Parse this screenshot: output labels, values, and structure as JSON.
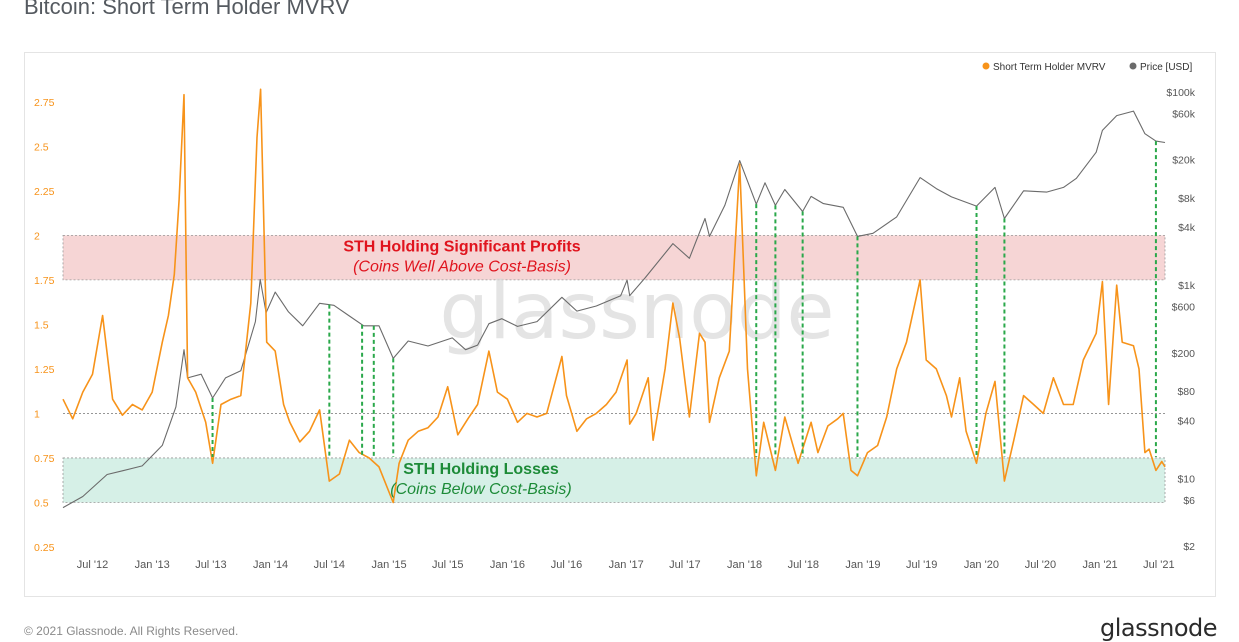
{
  "page": {
    "title": "Bitcoin: Short Term Holder MVRV",
    "copyright": "© 2021 Glassnode. All Rights Reserved.",
    "logo_text": "glassnode",
    "watermark": "glassnode"
  },
  "colors": {
    "mvrv": "#f7931a",
    "price": "#6b6b6b",
    "profit_zone": "#f3c7c7",
    "loss_zone": "#c9ece0",
    "profit_text": "#e0141e",
    "loss_text": "#1d8b38",
    "marker": "#2aa84a"
  },
  "chart_data": {
    "type": "line",
    "title": "Bitcoin: Short Term Holder MVRV",
    "legend_position": "top-right",
    "legend": [
      "Short Term Holder MVRV",
      "Price [USD]"
    ],
    "x_range": [
      "2012-04-01",
      "2021-07-20"
    ],
    "x_ticks": [
      "Jul '12",
      "Jan '13",
      "Jul '13",
      "Jan '14",
      "Jul '14",
      "Jan '15",
      "Jul '15",
      "Jan '16",
      "Jul '16",
      "Jan '17",
      "Jul '17",
      "Jan '18",
      "Jul '18",
      "Jan '19",
      "Jul '19",
      "Jan '20",
      "Jul '20",
      "Jan '21",
      "Jul '21"
    ],
    "x_tick_dates": [
      "2012-07-01",
      "2013-01-01",
      "2013-07-01",
      "2014-01-01",
      "2014-07-01",
      "2015-01-01",
      "2015-07-01",
      "2016-01-01",
      "2016-07-01",
      "2017-01-01",
      "2017-07-01",
      "2018-01-01",
      "2018-07-01",
      "2019-01-01",
      "2019-07-01",
      "2020-01-01",
      "2020-07-01",
      "2021-01-01",
      "2021-07-01"
    ],
    "y_left": {
      "label": "",
      "range": [
        0.25,
        2.85
      ],
      "ticks": [
        "0.25",
        "0.5",
        "0.75",
        "1",
        "1.25",
        "1.5",
        "1.75",
        "2",
        "2.25",
        "2.5",
        "2.75"
      ],
      "tick_values": [
        0.25,
        0.5,
        0.75,
        1,
        1.25,
        1.5,
        1.75,
        2,
        2.25,
        2.5,
        2.75
      ]
    },
    "y_right": {
      "label": "",
      "scale": "log",
      "range": [
        2,
        100000
      ],
      "ticks": [
        "$2",
        "$6",
        "$10",
        "$40",
        "$80",
        "$200",
        "$600",
        "$1k",
        "$4k",
        "$8k",
        "$20k",
        "$60k",
        "$100k"
      ],
      "tick_values": [
        2,
        6,
        10,
        40,
        80,
        200,
        600,
        1000,
        4000,
        8000,
        20000,
        60000,
        100000
      ]
    },
    "zones": [
      {
        "name": "profit",
        "from": 1.75,
        "to": 2.0,
        "label": "STH Holding Significant Profits",
        "sublabel": "(Coins Well Above Cost-Basis)"
      },
      {
        "name": "loss",
        "from": 0.5,
        "to": 0.75,
        "label": "STH Holding Losses",
        "sublabel": "(Coins Below Cost-Basis)"
      }
    ],
    "reference_line": 1.0,
    "series": [
      {
        "name": "Short Term Holder MVRV",
        "axis": "left",
        "points": [
          [
            "2012-04-01",
            1.08
          ],
          [
            "2012-05-01",
            0.97
          ],
          [
            "2012-06-01",
            1.12
          ],
          [
            "2012-07-01",
            1.22
          ],
          [
            "2012-08-01",
            1.55
          ],
          [
            "2012-09-01",
            1.08
          ],
          [
            "2012-10-01",
            0.99
          ],
          [
            "2012-11-01",
            1.05
          ],
          [
            "2012-12-01",
            1.02
          ],
          [
            "2013-01-01",
            1.12
          ],
          [
            "2013-02-01",
            1.4
          ],
          [
            "2013-02-20",
            1.55
          ],
          [
            "2013-03-10",
            1.78
          ],
          [
            "2013-03-25",
            2.2
          ],
          [
            "2013-04-09",
            2.79
          ],
          [
            "2013-04-20",
            1.2
          ],
          [
            "2013-05-15",
            1.12
          ],
          [
            "2013-06-15",
            0.95
          ],
          [
            "2013-07-06",
            0.72
          ],
          [
            "2013-08-01",
            1.05
          ],
          [
            "2013-09-01",
            1.08
          ],
          [
            "2013-10-01",
            1.1
          ],
          [
            "2013-11-01",
            1.62
          ],
          [
            "2013-11-20",
            2.55
          ],
          [
            "2013-12-01",
            2.82
          ],
          [
            "2013-12-20",
            1.4
          ],
          [
            "2014-01-15",
            1.35
          ],
          [
            "2014-02-10",
            1.05
          ],
          [
            "2014-03-01",
            0.95
          ],
          [
            "2014-04-01",
            0.84
          ],
          [
            "2014-05-01",
            0.9
          ],
          [
            "2014-06-01",
            1.02
          ],
          [
            "2014-07-01",
            0.62
          ],
          [
            "2014-08-01",
            0.66
          ],
          [
            "2014-09-01",
            0.85
          ],
          [
            "2014-10-01",
            0.78
          ],
          [
            "2014-11-01",
            0.75
          ],
          [
            "2014-12-01",
            0.7
          ],
          [
            "2015-01-14",
            0.5
          ],
          [
            "2015-02-01",
            0.72
          ],
          [
            "2015-03-01",
            0.85
          ],
          [
            "2015-04-01",
            0.9
          ],
          [
            "2015-05-01",
            0.92
          ],
          [
            "2015-06-01",
            0.98
          ],
          [
            "2015-07-01",
            1.15
          ],
          [
            "2015-08-01",
            0.88
          ],
          [
            "2015-09-01",
            0.97
          ],
          [
            "2015-10-01",
            1.05
          ],
          [
            "2015-11-05",
            1.35
          ],
          [
            "2015-12-01",
            1.12
          ],
          [
            "2016-01-01",
            1.08
          ],
          [
            "2016-02-01",
            0.95
          ],
          [
            "2016-03-01",
            1.0
          ],
          [
            "2016-04-01",
            0.98
          ],
          [
            "2016-05-01",
            1.0
          ],
          [
            "2016-06-17",
            1.32
          ],
          [
            "2016-07-01",
            1.1
          ],
          [
            "2016-08-02",
            0.9
          ],
          [
            "2016-09-01",
            0.97
          ],
          [
            "2016-10-01",
            1.0
          ],
          [
            "2016-11-01",
            1.05
          ],
          [
            "2016-12-01",
            1.12
          ],
          [
            "2017-01-04",
            1.3
          ],
          [
            "2017-01-12",
            0.94
          ],
          [
            "2017-02-01",
            1.0
          ],
          [
            "2017-03-10",
            1.2
          ],
          [
            "2017-03-25",
            0.85
          ],
          [
            "2017-05-01",
            1.25
          ],
          [
            "2017-05-25",
            1.62
          ],
          [
            "2017-06-15",
            1.42
          ],
          [
            "2017-07-15",
            0.98
          ],
          [
            "2017-08-15",
            1.45
          ],
          [
            "2017-09-01",
            1.4
          ],
          [
            "2017-09-15",
            0.95
          ],
          [
            "2017-10-15",
            1.2
          ],
          [
            "2017-11-15",
            1.35
          ],
          [
            "2017-12-17",
            2.4
          ],
          [
            "2018-01-10",
            1.25
          ],
          [
            "2018-02-06",
            0.65
          ],
          [
            "2018-03-01",
            0.95
          ],
          [
            "2018-04-06",
            0.68
          ],
          [
            "2018-05-05",
            0.98
          ],
          [
            "2018-06-15",
            0.72
          ],
          [
            "2018-07-25",
            0.95
          ],
          [
            "2018-08-15",
            0.78
          ],
          [
            "2018-09-15",
            0.93
          ],
          [
            "2018-10-15",
            0.97
          ],
          [
            "2018-11-01",
            1.0
          ],
          [
            "2018-11-25",
            0.68
          ],
          [
            "2018-12-15",
            0.65
          ],
          [
            "2019-01-15",
            0.78
          ],
          [
            "2019-02-15",
            0.82
          ],
          [
            "2019-03-15",
            0.98
          ],
          [
            "2019-04-15",
            1.25
          ],
          [
            "2019-05-15",
            1.4
          ],
          [
            "2019-06-26",
            1.75
          ],
          [
            "2019-07-15",
            1.3
          ],
          [
            "2019-08-15",
            1.25
          ],
          [
            "2019-09-15",
            1.1
          ],
          [
            "2019-10-01",
            0.98
          ],
          [
            "2019-10-26",
            1.2
          ],
          [
            "2019-11-15",
            0.9
          ],
          [
            "2019-12-17",
            0.72
          ],
          [
            "2020-01-15",
            1.0
          ],
          [
            "2020-02-12",
            1.18
          ],
          [
            "2020-03-12",
            0.62
          ],
          [
            "2020-04-10",
            0.85
          ],
          [
            "2020-05-10",
            1.1
          ],
          [
            "2020-06-10",
            1.05
          ],
          [
            "2020-07-10",
            1.0
          ],
          [
            "2020-08-10",
            1.2
          ],
          [
            "2020-09-10",
            1.05
          ],
          [
            "2020-10-10",
            1.05
          ],
          [
            "2020-11-10",
            1.3
          ],
          [
            "2020-12-20",
            1.45
          ],
          [
            "2021-01-08",
            1.74
          ],
          [
            "2021-01-27",
            1.05
          ],
          [
            "2021-02-21",
            1.72
          ],
          [
            "2021-03-10",
            1.4
          ],
          [
            "2021-04-14",
            1.38
          ],
          [
            "2021-05-01",
            1.25
          ],
          [
            "2021-05-19",
            0.78
          ],
          [
            "2021-06-01",
            0.8
          ],
          [
            "2021-06-22",
            0.68
          ],
          [
            "2021-07-10",
            0.73
          ],
          [
            "2021-07-20",
            0.7
          ]
        ]
      },
      {
        "name": "Price [USD]",
        "axis": "right",
        "points": [
          [
            "2012-04-01",
            5
          ],
          [
            "2012-06-01",
            6.5
          ],
          [
            "2012-08-15",
            11
          ],
          [
            "2012-10-01",
            12
          ],
          [
            "2012-12-01",
            13.5
          ],
          [
            "2013-02-01",
            22
          ],
          [
            "2013-03-15",
            55
          ],
          [
            "2013-04-09",
            215
          ],
          [
            "2013-04-20",
            110
          ],
          [
            "2013-06-01",
            120
          ],
          [
            "2013-07-06",
            68
          ],
          [
            "2013-08-15",
            110
          ],
          [
            "2013-10-01",
            130
          ],
          [
            "2013-11-15",
            420
          ],
          [
            "2013-11-30",
            1150
          ],
          [
            "2013-12-18",
            520
          ],
          [
            "2014-01-15",
            850
          ],
          [
            "2014-02-25",
            530
          ],
          [
            "2014-04-10",
            380
          ],
          [
            "2014-06-01",
            650
          ],
          [
            "2014-07-15",
            620
          ],
          [
            "2014-09-01",
            480
          ],
          [
            "2014-10-15",
            380
          ],
          [
            "2014-12-01",
            380
          ],
          [
            "2015-01-14",
            175
          ],
          [
            "2015-03-01",
            265
          ],
          [
            "2015-05-01",
            235
          ],
          [
            "2015-07-15",
            285
          ],
          [
            "2015-08-25",
            215
          ],
          [
            "2015-10-01",
            240
          ],
          [
            "2015-11-05",
            400
          ],
          [
            "2015-12-15",
            450
          ],
          [
            "2016-02-01",
            375
          ],
          [
            "2016-04-01",
            420
          ],
          [
            "2016-06-17",
            750
          ],
          [
            "2016-08-02",
            540
          ],
          [
            "2016-10-01",
            610
          ],
          [
            "2016-12-15",
            780
          ],
          [
            "2017-01-04",
            1130
          ],
          [
            "2017-01-12",
            780
          ],
          [
            "2017-03-01",
            1200
          ],
          [
            "2017-05-25",
            2700
          ],
          [
            "2017-07-15",
            1900
          ],
          [
            "2017-09-01",
            4900
          ],
          [
            "2017-09-15",
            3200
          ],
          [
            "2017-11-01",
            6700
          ],
          [
            "2017-12-17",
            19500
          ],
          [
            "2018-02-06",
            6900
          ],
          [
            "2018-03-05",
            11500
          ],
          [
            "2018-04-06",
            6700
          ],
          [
            "2018-05-05",
            9800
          ],
          [
            "2018-06-29",
            5800
          ],
          [
            "2018-07-25",
            8300
          ],
          [
            "2018-09-01",
            7000
          ],
          [
            "2018-11-01",
            6400
          ],
          [
            "2018-12-15",
            3200
          ],
          [
            "2019-02-01",
            3450
          ],
          [
            "2019-04-15",
            5100
          ],
          [
            "2019-06-26",
            13000
          ],
          [
            "2019-08-15",
            10000
          ],
          [
            "2019-10-01",
            8200
          ],
          [
            "2019-12-17",
            6600
          ],
          [
            "2020-02-12",
            10300
          ],
          [
            "2020-03-12",
            4900
          ],
          [
            "2020-05-10",
            9500
          ],
          [
            "2020-07-20",
            9200
          ],
          [
            "2020-09-10",
            10300
          ],
          [
            "2020-10-20",
            12800
          ],
          [
            "2020-12-20",
            23800
          ],
          [
            "2021-01-08",
            40000
          ],
          [
            "2021-02-21",
            57000
          ],
          [
            "2021-04-14",
            63500
          ],
          [
            "2021-05-19",
            37000
          ],
          [
            "2021-06-22",
            31000
          ],
          [
            "2021-07-20",
            30000
          ]
        ]
      }
    ],
    "capitulation_markers": [
      "2013-07-06",
      "2014-07-01",
      "2014-10-10",
      "2014-11-15",
      "2015-01-14",
      "2018-02-06",
      "2018-04-06",
      "2018-06-29",
      "2018-12-15",
      "2019-12-17",
      "2020-03-12",
      "2021-06-22"
    ]
  }
}
